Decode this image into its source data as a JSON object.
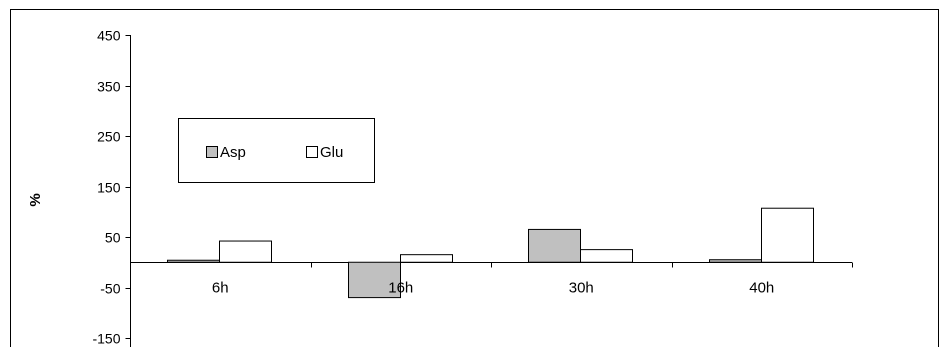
{
  "chart_data": {
    "type": "bar",
    "categories": [
      "6h",
      "16h",
      "30h",
      "40h"
    ],
    "series": [
      {
        "name": "Asp",
        "values": [
          4,
          -70,
          65,
          5
        ]
      },
      {
        "name": "Glu",
        "values": [
          42,
          15,
          25,
          107
        ]
      }
    ],
    "ylabel": "%",
    "yticks": [
      450,
      350,
      250,
      150,
      50,
      -50,
      -150
    ],
    "ylim": [
      -150,
      450
    ],
    "grid": false,
    "legend_position": "top-left",
    "colors": {
      "Asp": "#c0c0c0",
      "Glu": "#ffffff",
      "stroke": "#000000"
    }
  }
}
